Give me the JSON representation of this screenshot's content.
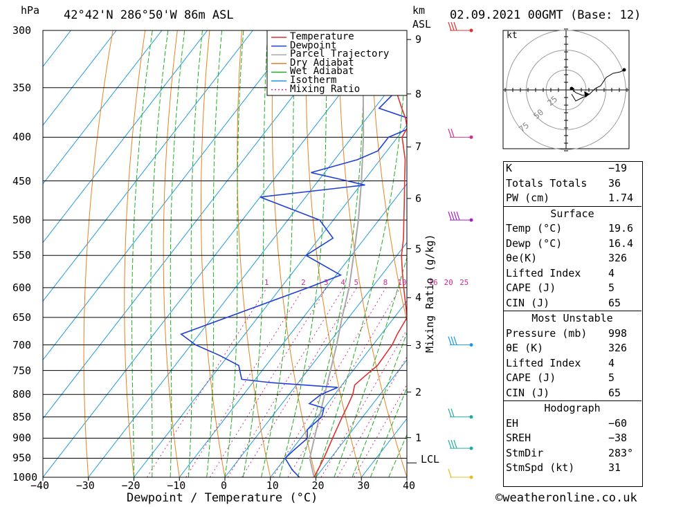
{
  "header": {
    "location": "42°42'N 286°50'W 86m ASL",
    "date": "02.09.2021 00GMT (Base: 12)",
    "hpa_label": "hPa",
    "km_label": "km",
    "asl_label": "ASL"
  },
  "axes": {
    "xlabel": "Dewpoint / Temperature (°C)",
    "ylabel": "Mixing Ratio (g/kg)",
    "pressure_ticks": [
      "300",
      "350",
      "400",
      "450",
      "500",
      "550",
      "600",
      "650",
      "700",
      "750",
      "800",
      "850",
      "900",
      "950",
      "1000"
    ],
    "temp_ticks": [
      "−40",
      "−30",
      "−20",
      "−10",
      "0",
      "10",
      "20",
      "30",
      "40"
    ],
    "km_ticks": [
      "9",
      "8",
      "7",
      "6",
      "5",
      "4",
      "3",
      "2",
      "1"
    ],
    "lcl_label": "LCL",
    "mixing_labels": [
      "1",
      "2",
      "3",
      "4",
      "5",
      "8",
      "10",
      "16",
      "20",
      "25"
    ]
  },
  "legend": [
    {
      "label": "Temperature",
      "color": "#e03030",
      "dash": false
    },
    {
      "label": "Dewpoint",
      "color": "#1f3fd8",
      "dash": false
    },
    {
      "label": "Parcel Trajectory",
      "color": "#a8a8a8",
      "dash": false
    },
    {
      "label": "Dry Adiabat",
      "color": "#e8821e",
      "dash": false
    },
    {
      "label": "Wet Adiabat",
      "color": "#1fae1f",
      "dash": false
    },
    {
      "label": "Isotherm",
      "color": "#1e9be0",
      "dash": false
    },
    {
      "label": "Mixing Ratio",
      "color": "#d0308c",
      "dash": true
    }
  ],
  "hodograph": {
    "unit_label": "kt",
    "ring_labels": [
      "25",
      "50",
      "75"
    ]
  },
  "indices": {
    "top": [
      {
        "k": "K",
        "v": "−19"
      },
      {
        "k": "Totals Totals",
        "v": "36"
      },
      {
        "k": "PW (cm)",
        "v": "1.74"
      }
    ],
    "surface_title": "Surface",
    "surface": [
      {
        "k": "Temp (°C)",
        "v": "19.6"
      },
      {
        "k": "Dewp (°C)",
        "v": "16.4"
      },
      {
        "k": "θe(K)",
        "v": "326"
      },
      {
        "k": "Lifted Index",
        "v": "4"
      },
      {
        "k": "CAPE (J)",
        "v": "5"
      },
      {
        "k": "CIN (J)",
        "v": "65"
      }
    ],
    "mu_title": "Most Unstable",
    "mu": [
      {
        "k": "Pressure (mb)",
        "v": "998"
      },
      {
        "k": "θE (K)",
        "v": "326"
      },
      {
        "k": "Lifted Index",
        "v": "4"
      },
      {
        "k": "CAPE (J)",
        "v": "5"
      },
      {
        "k": "CIN (J)",
        "v": "65"
      }
    ],
    "hodo_title": "Hodograph",
    "hodo": [
      {
        "k": "EH",
        "v": "−60"
      },
      {
        "k": "SREH",
        "v": "−38"
      },
      {
        "k": "StmDir",
        "v": "283°"
      },
      {
        "k": "StmSpd (kt)",
        "v": "31"
      }
    ]
  },
  "copyright": "©weatheronline.co.uk",
  "chart_data": {
    "type": "line",
    "title": "42°42'N 286°50'W 86m ASL",
    "xlabel": "Dewpoint / Temperature (°C)",
    "ylabel": "hPa",
    "xlim": [
      -40,
      40
    ],
    "ylim": [
      1000,
      300
    ],
    "series": [
      {
        "name": "Temperature",
        "color": "#e03030",
        "p": [
          1000,
          950,
          900,
          850,
          825,
          800,
          780,
          760,
          740,
          700,
          680,
          650,
          600,
          575,
          550,
          525,
          500,
          480,
          450,
          425,
          400,
          390,
          380,
          370,
          350,
          325,
          300
        ],
        "t": [
          19.6,
          18.5,
          17.0,
          15.5,
          14.8,
          14.0,
          12.8,
          13.6,
          14.5,
          14.2,
          13.5,
          12.8,
          7.0,
          4.0,
          1.0,
          -1.5,
          -4.5,
          -7.0,
          -11.0,
          -14.5,
          -19.0,
          -19.5,
          -21.5,
          -24.0,
          -29.0,
          -34.5,
          -40.0
        ]
      },
      {
        "name": "Dewpoint",
        "color": "#1f3fd8",
        "p": [
          1000,
          980,
          950,
          930,
          900,
          880,
          850,
          830,
          820,
          800,
          785,
          775,
          768,
          740,
          720,
          700,
          680,
          600,
          580,
          550,
          525,
          500,
          470,
          455,
          440,
          425,
          415,
          400,
          385,
          370,
          350,
          320,
          300
        ],
        "t": [
          16.4,
          13.5,
          10.0,
          10.5,
          11.5,
          10.0,
          11.0,
          10.0,
          6.0,
          7.0,
          9.5,
          -6.0,
          -13.0,
          -16.0,
          -22.0,
          -29.0,
          -34.0,
          -14.0,
          -9.0,
          -20.0,
          -17.0,
          -23.0,
          -40.0,
          -19.0,
          -33.0,
          -25.0,
          -22.0,
          -22.0,
          -17.0,
          -29.0,
          -28.0,
          -29.0,
          -33.0
        ]
      },
      {
        "name": "Parcel Trajectory",
        "color": "#a8a8a8",
        "p": [
          1000,
          950,
          900,
          850,
          800,
          750,
          700,
          650,
          600,
          550,
          500,
          450,
          400,
          350,
          300
        ],
        "t": [
          19.6,
          15.4,
          13.0,
          10.5,
          7.8,
          5.0,
          2.0,
          -1.5,
          -5.0,
          -9.5,
          -14.5,
          -20.5,
          -27.5,
          -36.0,
          -46.5
        ]
      }
    ]
  }
}
